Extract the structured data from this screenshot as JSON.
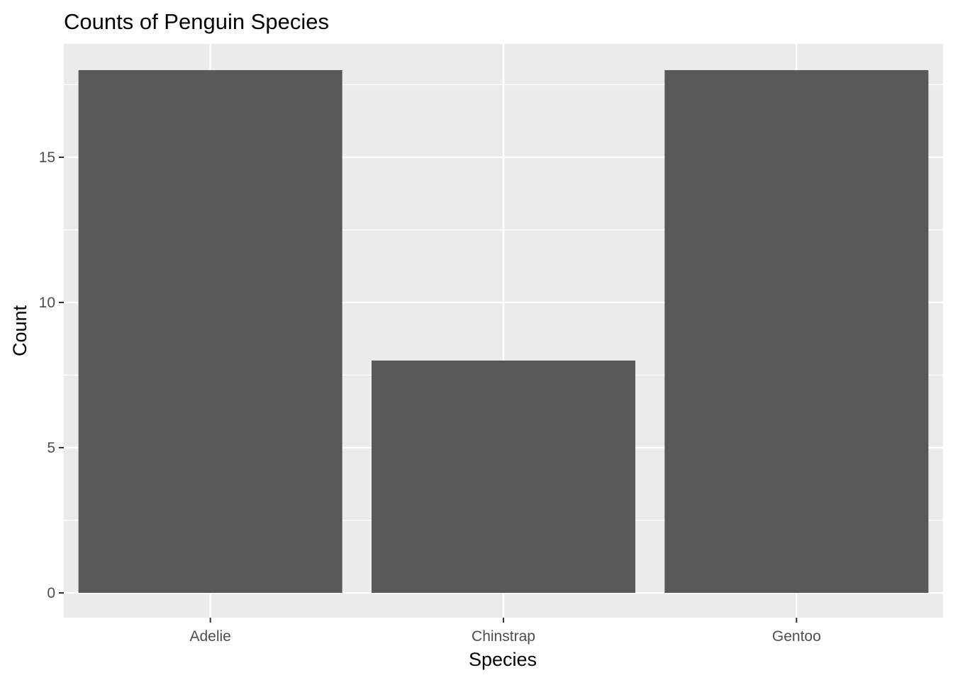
{
  "chart_data": {
    "type": "bar",
    "title": "Counts of Penguin Species",
    "xlabel": "Species",
    "ylabel": "Count",
    "categories": [
      "Adelie",
      "Chinstrap",
      "Gentoo"
    ],
    "values": [
      18,
      8,
      18
    ],
    "ylim": [
      0,
      18.9
    ],
    "yticks": [
      0,
      5,
      10,
      15
    ],
    "yticks_minor": [
      2.5,
      7.5,
      12.5,
      17.5
    ],
    "grid": true,
    "legend": "none",
    "colors": {
      "bar": "#595959",
      "panel": "#ebebeb",
      "grid": "#ffffff",
      "tick": "#333333"
    }
  }
}
